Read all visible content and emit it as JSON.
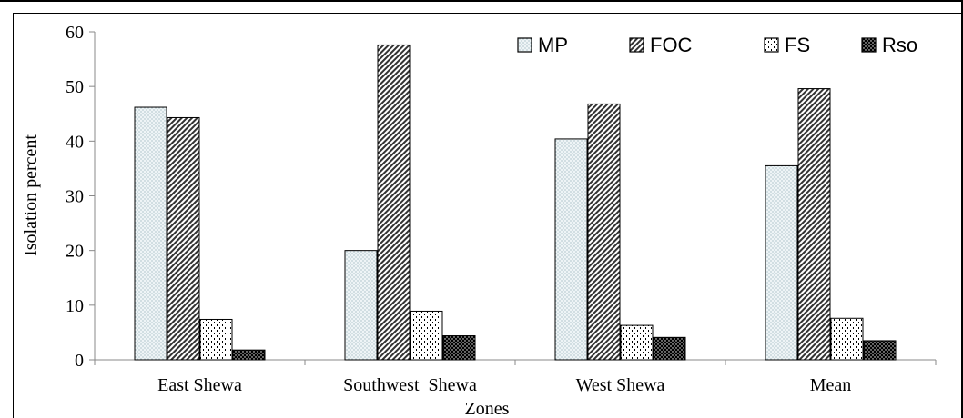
{
  "chart_data": {
    "type": "bar",
    "title": "",
    "xlabel": "Zones",
    "ylabel": "Isolation percent",
    "ylim": [
      0,
      60
    ],
    "yticks": [
      "0",
      "10",
      "20",
      "30",
      "40",
      "50",
      "60"
    ],
    "categories": [
      "East Shewa",
      "Southwest  Shewa",
      "West Shewa",
      "Mean"
    ],
    "series": [
      {
        "name": "MP",
        "values": [
          46.2,
          20.0,
          40.4,
          35.5
        ],
        "fill": "dots-light"
      },
      {
        "name": "FOC",
        "values": [
          44.3,
          57.6,
          46.8,
          49.6
        ],
        "fill": "diagonal-hatch"
      },
      {
        "name": "FS",
        "values": [
          7.4,
          8.9,
          6.3,
          7.6
        ],
        "fill": "dashes"
      },
      {
        "name": "Rso",
        "values": [
          1.8,
          4.4,
          4.1,
          3.5
        ],
        "fill": "dots-dark"
      }
    ],
    "legend": "top-right",
    "grid": false
  }
}
